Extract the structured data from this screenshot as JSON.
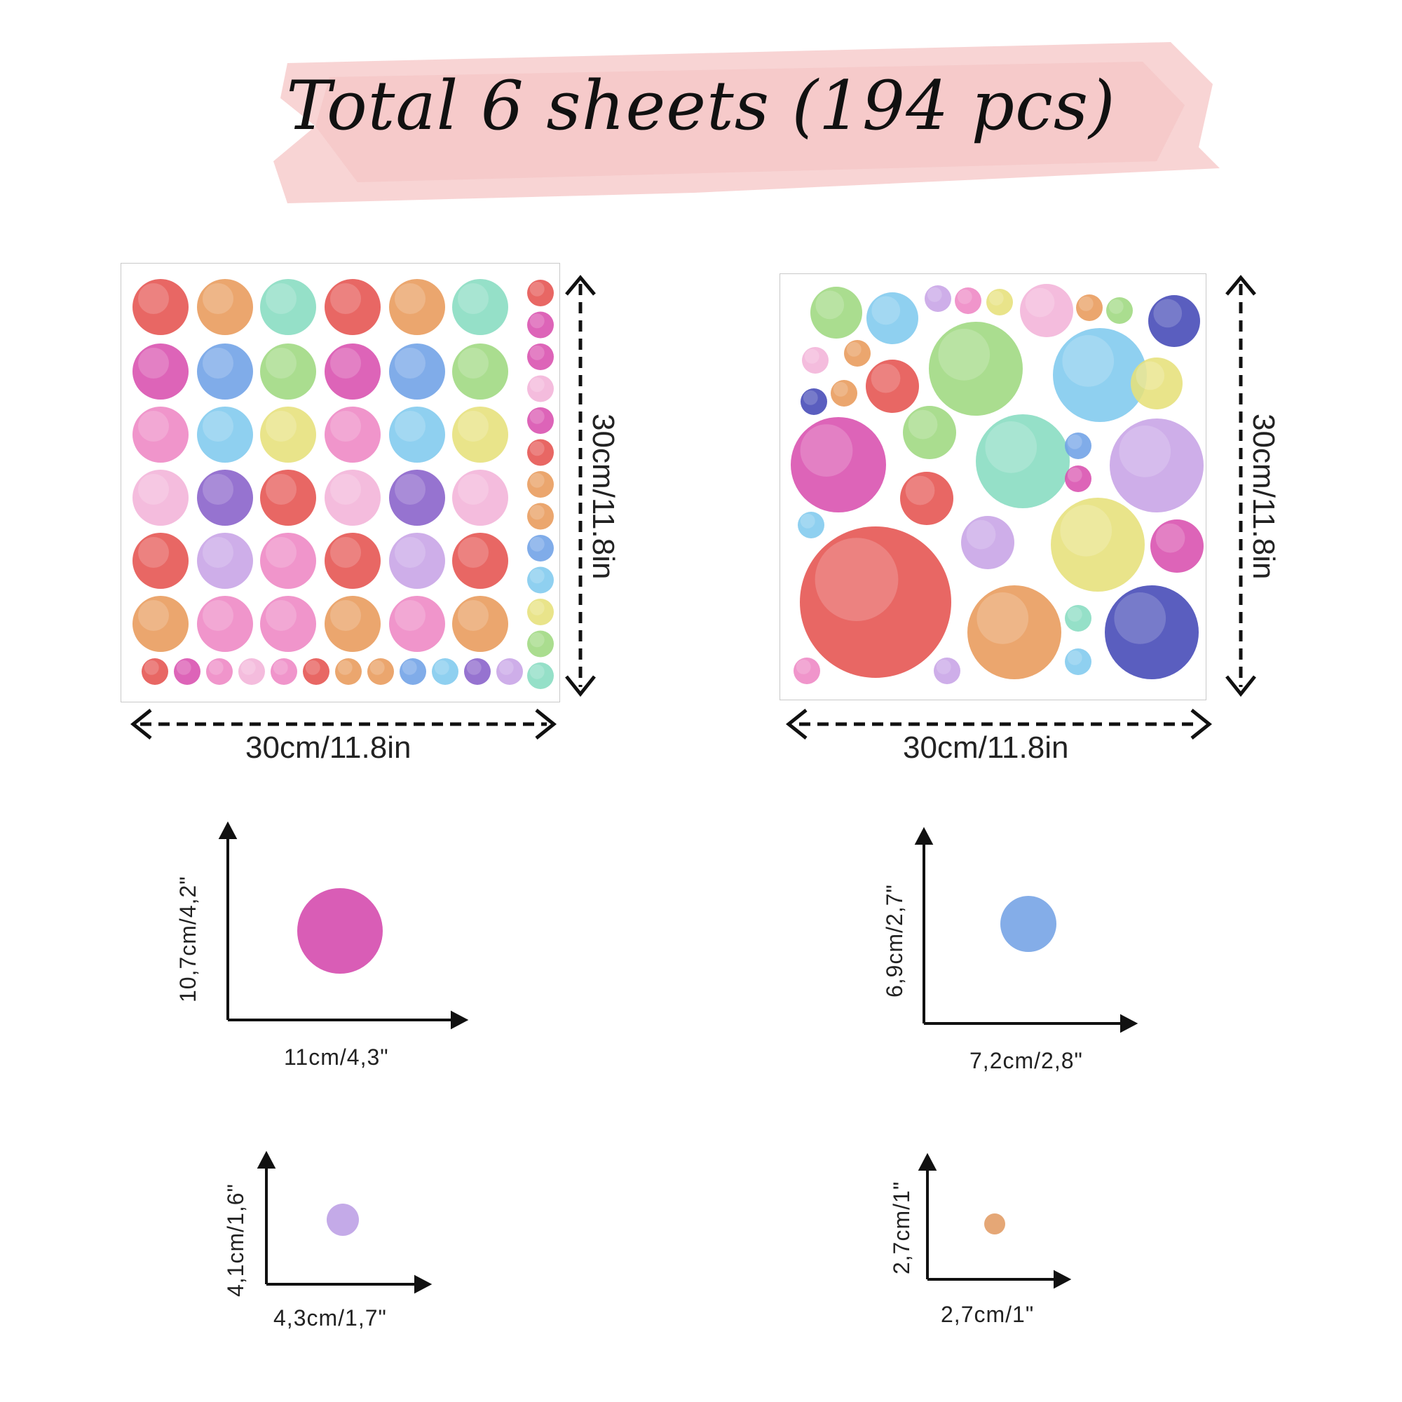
{
  "title": "Total 6 sheets (194 pcs)",
  "sheets": [
    {
      "width_label": "30cm/11.8in",
      "height_label": "30cm/11.8in"
    },
    {
      "width_label": "30cm/11.8in",
      "height_label": "30cm/11.8in"
    }
  ],
  "sizes": [
    {
      "width_label": "11cm/4,3\"",
      "height_label": "10,7cm/4,2\"",
      "dot_color": "#d64fb0"
    },
    {
      "width_label": "7,2cm/2,8\"",
      "height_label": "6,9cm/2,7\"",
      "dot_color": "#7aa6e6"
    },
    {
      "width_label": "4,3cm/1,7\"",
      "height_label": "4,1cm/1,6\"",
      "dot_color": "#bfa3e6"
    },
    {
      "width_label": "2,7cm/1\"",
      "height_label": "2,7cm/1\"",
      "dot_color": "#e3a06a"
    }
  ],
  "colors": {
    "banner": "#f7cfcf",
    "red": "#e5524f",
    "orange": "#e89a5a",
    "mint": "#86dcc0",
    "magenta": "#d84fae",
    "blue": "#6ea0e6",
    "green": "#9ed87f",
    "pink": "#ee86c4",
    "sky": "#7fc9ee",
    "yellow": "#e6e07a",
    "lightpink": "#f3b3d8",
    "purple": "#8860c9",
    "lavender": "#c7a3e6",
    "navy": "#4348b6"
  }
}
